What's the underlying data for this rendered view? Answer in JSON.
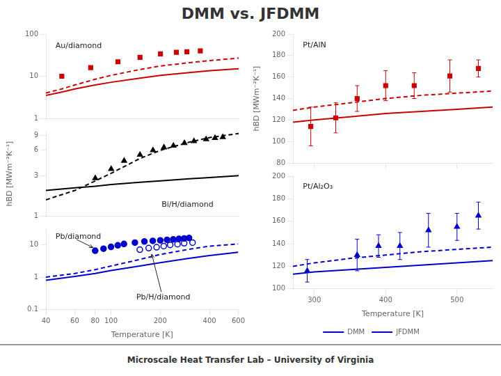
{
  "title": "DMM vs. JFDMM",
  "annotations": [
    "Microscale Heat Transfer Lab – University of Virginia"
  ],
  "chart_data": [
    {
      "type": "scatter",
      "log": true,
      "grid": false,
      "tick_labels": "y",
      "xlim": [
        40,
        600
      ],
      "xticks": [],
      "ylim": [
        1,
        100
      ],
      "yticks": [
        1,
        10,
        100
      ],
      "annotations": [
        "Au/diamond"
      ],
      "series": [
        {
          "name": "DMM",
          "type": "line",
          "line_style": "solid",
          "color": "#cc0000",
          "x": [
            40,
            50,
            60,
            80,
            100,
            150,
            200,
            300,
            400,
            600
          ],
          "values": [
            3.5,
            4.2,
            5.0,
            6.2,
            7.2,
            9.0,
            10.5,
            12.2,
            13.5,
            15.0
          ]
        },
        {
          "name": "JFDMM",
          "type": "line",
          "line_style": "dashed",
          "color": "#cc0000",
          "x": [
            40,
            50,
            60,
            80,
            100,
            150,
            200,
            300,
            400,
            600
          ],
          "values": [
            4.0,
            5.0,
            6.2,
            8.5,
            10.5,
            14.5,
            17.5,
            21.0,
            23.5,
            27.0
          ]
        },
        {
          "type": "scatter",
          "marker": "square",
          "color": "#cc0000",
          "x": [
            50,
            75,
            110,
            150,
            200,
            250,
            290,
            350
          ],
          "values": [
            10,
            16,
            22,
            28,
            34,
            37,
            38,
            40
          ]
        }
      ]
    },
    {
      "type": "scatter",
      "log": true,
      "grid": false,
      "tick_labels": "y",
      "xlim": [
        40,
        600
      ],
      "xticks": [],
      "ylim": [
        1,
        10
      ],
      "yticks": [
        1,
        3,
        6,
        9
      ],
      "ylabel": "hBD [MWm⁻²K⁻¹]",
      "annotations": [
        "Bi/H/diamond"
      ],
      "series": [
        {
          "name": "DMM",
          "type": "line",
          "line_style": "solid",
          "color": "#000000",
          "x": [
            40,
            60,
            80,
            100,
            150,
            200,
            300,
            400,
            600
          ],
          "values": [
            2.0,
            2.15,
            2.25,
            2.35,
            2.5,
            2.6,
            2.75,
            2.85,
            3.0
          ]
        },
        {
          "name": "JFDMM",
          "type": "line",
          "line_style": "dashed",
          "color": "#000000",
          "x": [
            40,
            60,
            80,
            100,
            150,
            200,
            300,
            400,
            600
          ],
          "values": [
            1.55,
            2.0,
            2.6,
            3.2,
            4.8,
            6.0,
            7.5,
            8.5,
            9.5
          ]
        },
        {
          "type": "scatter",
          "marker": "triangle",
          "color": "#000000",
          "x": [
            80,
            100,
            120,
            150,
            180,
            210,
            240,
            280,
            320,
            380,
            430,
            480
          ],
          "values": [
            2.8,
            3.6,
            4.5,
            5.3,
            6.0,
            6.5,
            6.8,
            7.3,
            7.7,
            8.1,
            8.4,
            8.6
          ]
        }
      ]
    },
    {
      "type": "scatter",
      "log": true,
      "grid": false,
      "xlim": [
        40,
        600
      ],
      "xticks": [
        40,
        60,
        80,
        100,
        200,
        400,
        600
      ],
      "ylim": [
        0.1,
        30
      ],
      "yticks": [
        0.1,
        1,
        10
      ],
      "xlabel": "Temperature [K]",
      "annotations": [
        "Pb/diamond",
        "Pb/H/diamond"
      ],
      "series": [
        {
          "name": "DMM",
          "type": "line",
          "line_style": "solid",
          "color": "#0000cc",
          "x": [
            40,
            60,
            80,
            100,
            150,
            200,
            300,
            400,
            600
          ],
          "values": [
            0.8,
            1.05,
            1.3,
            1.6,
            2.2,
            2.8,
            3.8,
            4.6,
            5.8
          ]
        },
        {
          "name": "JFDMM",
          "type": "line",
          "line_style": "dashed",
          "color": "#0000cc",
          "x": [
            40,
            60,
            80,
            100,
            150,
            200,
            300,
            400,
            600
          ],
          "values": [
            1.0,
            1.3,
            1.7,
            2.2,
            3.5,
            5.0,
            7.2,
            9.0,
            10.5
          ]
        },
        {
          "type": "scatter",
          "marker": "circle",
          "color": "#0000cc",
          "x": [
            80,
            90,
            100,
            110,
            120,
            140,
            160,
            180,
            200,
            220,
            240,
            260,
            280,
            300
          ],
          "values": [
            6.5,
            7.5,
            8.5,
            9.5,
            10.5,
            11.5,
            12.5,
            13.0,
            13.5,
            14.0,
            14.5,
            15.0,
            15.5,
            16.0
          ]
        },
        {
          "type": "scatter",
          "marker": "open_circle",
          "color": "#0000cc",
          "x": [
            150,
            170,
            190,
            210,
            230,
            255,
            280,
            315
          ],
          "values": [
            7.0,
            7.8,
            8.3,
            9.0,
            9.8,
            10.3,
            11.0,
            11.5
          ]
        }
      ]
    },
    {
      "type": "scatter",
      "grid": false,
      "tick_labels": "y",
      "xlim": [
        270,
        550
      ],
      "xticks": [
        300,
        400,
        500
      ],
      "ylim": [
        80,
        200
      ],
      "yticks": [
        80,
        100,
        120,
        140,
        160,
        180,
        200
      ],
      "ylabel": "hBD [MWm⁻²K⁻¹]",
      "annotations": [
        "Pt/AlN"
      ],
      "series": [
        {
          "name": "DMM",
          "type": "line",
          "line_style": "solid",
          "color": "#cc0000",
          "x": [
            270,
            300,
            350,
            400,
            450,
            500,
            550
          ],
          "values": [
            118,
            120,
            123,
            126,
            128,
            130,
            132
          ]
        },
        {
          "name": "JFDMM",
          "type": "line",
          "line_style": "dashed",
          "color": "#cc0000",
          "x": [
            270,
            300,
            350,
            400,
            450,
            500,
            550
          ],
          "values": [
            129,
            132,
            136,
            140,
            143,
            145,
            147
          ]
        },
        {
          "type": "scatter",
          "marker": "square",
          "color": "#cc0000",
          "x": [
            295,
            330,
            360,
            400,
            440,
            490,
            530
          ],
          "values": [
            114,
            122,
            140,
            152,
            152,
            161,
            168
          ],
          "yerr": [
            18,
            14,
            12,
            14,
            12,
            15,
            8
          ]
        }
      ]
    },
    {
      "type": "scatter",
      "grid": false,
      "legend": "bottom",
      "xlim": [
        270,
        550
      ],
      "xticks": [
        300,
        400,
        500
      ],
      "ylim": [
        100,
        200
      ],
      "yticks": [
        100,
        120,
        140,
        160,
        180,
        200
      ],
      "xlabel": "Temperature [K]",
      "annotations": [
        "Pt/Al₂O₃"
      ],
      "series": [
        {
          "name": "DMM",
          "type": "line",
          "line_style": "solid",
          "color": "#0000cc",
          "x": [
            270,
            300,
            350,
            400,
            450,
            500,
            550
          ],
          "values": [
            113,
            115,
            117,
            119,
            121,
            123,
            125
          ]
        },
        {
          "name": "JFDMM",
          "type": "line",
          "line_style": "dashed",
          "color": "#0000cc",
          "x": [
            270,
            300,
            350,
            400,
            450,
            500,
            550
          ],
          "values": [
            120,
            123,
            127,
            130,
            133,
            135,
            137
          ]
        },
        {
          "type": "scatter",
          "marker": "triangle",
          "color": "#0000cc",
          "x": [
            290,
            360,
            390,
            420,
            460,
            500,
            530
          ],
          "values": [
            116,
            130,
            138,
            138,
            152,
            155,
            165
          ],
          "yerr": [
            10,
            14,
            10,
            12,
            15,
            12,
            12
          ]
        }
      ]
    }
  ]
}
